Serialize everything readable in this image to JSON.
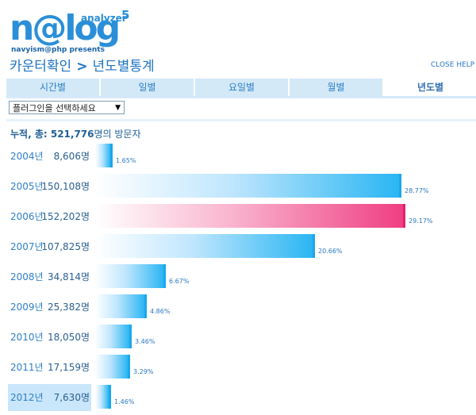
{
  "logo": {
    "wordmark": "n@log",
    "product": "analyzer",
    "version": "5",
    "tagline": "navyism@php presents"
  },
  "header": {
    "breadcrumb_root": "카운터확인",
    "separator": ">",
    "current": "년도별통계",
    "close_help": "CLOSE HELP"
  },
  "tabs": [
    {
      "label": "시간별",
      "active": false
    },
    {
      "label": "일별",
      "active": false
    },
    {
      "label": "요일별",
      "active": false
    },
    {
      "label": "월별",
      "active": false
    },
    {
      "label": "년도별",
      "active": true
    }
  ],
  "plugin_select": {
    "selected": "플러그인을 선택하세요"
  },
  "summary": {
    "prefix": "누적, 총: ",
    "total": "521,776",
    "suffix": "명의 방문자"
  },
  "colors": {
    "bar_gradient_end": "#2bb6f3",
    "highlight_bar_end": "#ef3f83",
    "tab_bg": "#d3e9f7",
    "text_blue": "#2f7fc6"
  },
  "rows": [
    {
      "year": "2004년",
      "count": "8,606명",
      "percent": "1.65%",
      "share": 1.65,
      "highlight_bar": false,
      "highlight_label": false
    },
    {
      "year": "2005년",
      "count": "150,108명",
      "percent": "28.77%",
      "share": 28.77,
      "highlight_bar": false,
      "highlight_label": false
    },
    {
      "year": "2006년",
      "count": "152,202명",
      "percent": "29.17%",
      "share": 29.17,
      "highlight_bar": true,
      "highlight_label": false
    },
    {
      "year": "2007년",
      "count": "107,825명",
      "percent": "20.66%",
      "share": 20.66,
      "highlight_bar": false,
      "highlight_label": false
    },
    {
      "year": "2008년",
      "count": "34,814명",
      "percent": "6.67%",
      "share": 6.67,
      "highlight_bar": false,
      "highlight_label": false
    },
    {
      "year": "2009년",
      "count": "25,382명",
      "percent": "4.86%",
      "share": 4.86,
      "highlight_bar": false,
      "highlight_label": false
    },
    {
      "year": "2010년",
      "count": "18,050명",
      "percent": "3.46%",
      "share": 3.46,
      "highlight_bar": false,
      "highlight_label": false
    },
    {
      "year": "2011년",
      "count": "17,159명",
      "percent": "3.29%",
      "share": 3.29,
      "highlight_bar": false,
      "highlight_label": false
    },
    {
      "year": "2012년",
      "count": "7,630명",
      "percent": "1.46%",
      "share": 1.46,
      "highlight_bar": false,
      "highlight_label": true
    }
  ]
}
